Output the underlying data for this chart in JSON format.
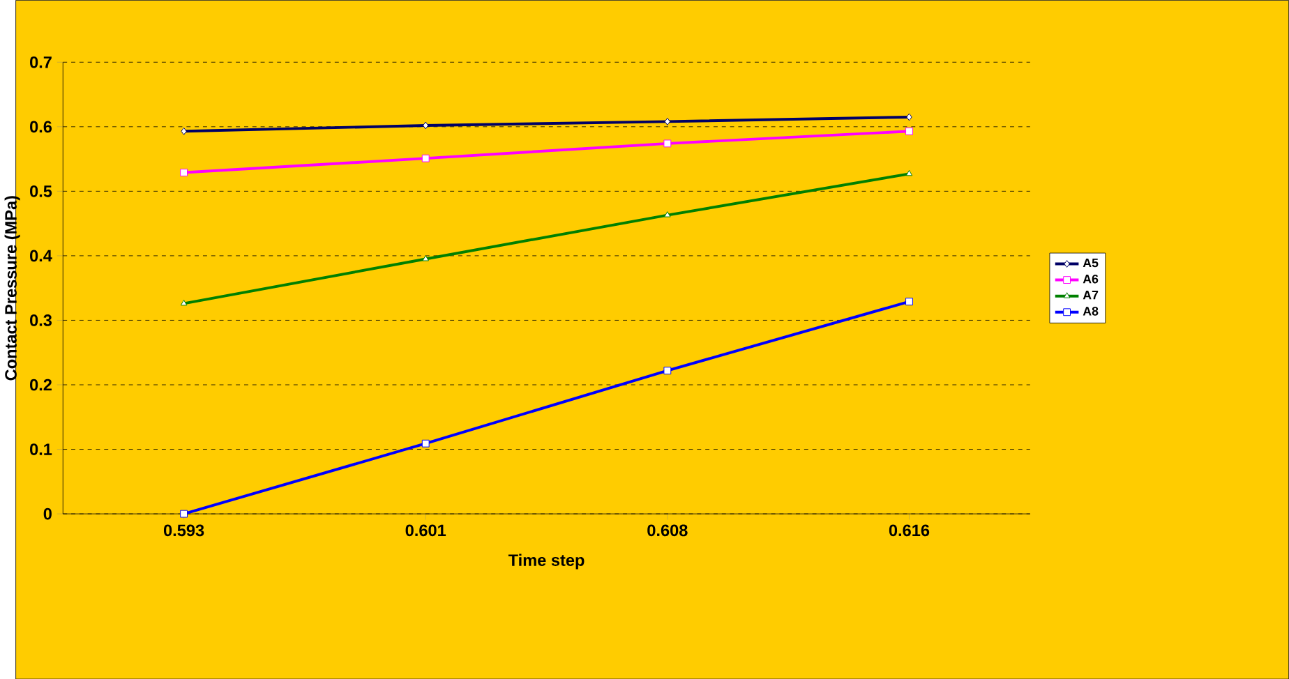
{
  "chart_data": {
    "type": "line",
    "xlabel": "Time step",
    "ylabel": "Contact Pressure (MPa)",
    "categories": [
      "0.593",
      "0.601",
      "0.608",
      "0.616"
    ],
    "series": [
      {
        "name": "A5",
        "color": "#000066",
        "marker": "diamond",
        "values": [
          0.593,
          0.602,
          0.608,
          0.615
        ]
      },
      {
        "name": "A6",
        "color": "#ff00ff",
        "marker": "square",
        "values": [
          0.529,
          0.551,
          0.574,
          0.593
        ]
      },
      {
        "name": "A7",
        "color": "#008000",
        "marker": "triangle",
        "values": [
          0.326,
          0.395,
          0.463,
          0.527
        ]
      },
      {
        "name": "A8",
        "color": "#0000ff",
        "marker": "square",
        "values": [
          0,
          0.109,
          0.222,
          0.329
        ]
      }
    ],
    "ylim": [
      0,
      0.7
    ],
    "yticks": [
      0,
      0.1,
      0.2,
      0.3,
      0.4,
      0.5,
      0.6,
      0.7
    ],
    "grid": "y",
    "legend": "right",
    "line_style": "solid"
  }
}
